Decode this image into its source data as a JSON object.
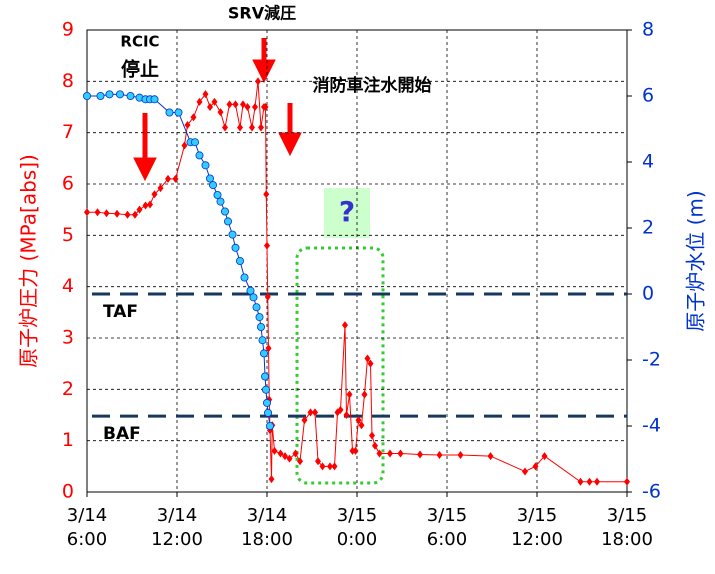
{
  "chart_data": {
    "type": "line",
    "y_label": "原子炉圧力 (MPa[abs])",
    "y2_label": "原子炉水位 (m)",
    "xlim": [
      6,
      42
    ],
    "xticks": [
      {
        "value": 6,
        "label": "3/14 6:00"
      },
      {
        "value": 12,
        "label": "3/14 12:00"
      },
      {
        "value": 18,
        "label": "3/14 18:00"
      },
      {
        "value": 24,
        "label": "3/15 0:00"
      },
      {
        "value": 30,
        "label": "3/15 6:00"
      },
      {
        "value": 36,
        "label": "3/15 12:00"
      },
      {
        "value": 42,
        "label": "3/15 18:00"
      }
    ],
    "ylim": [
      0,
      9
    ],
    "yticks": [
      0,
      1,
      2,
      3,
      4,
      5,
      6,
      7,
      8,
      9
    ],
    "y2lim": [
      -6,
      8
    ],
    "y2ticks": [
      -6,
      -4,
      -2,
      0,
      2,
      4,
      6,
      8
    ],
    "grid": true,
    "series": [
      {
        "color": "#ff0000",
        "marker": "diamond",
        "axis": "y",
        "x": [
          6.0,
          6.7,
          7.3,
          8.0,
          8.7,
          9.2,
          9.5,
          9.9,
          10.2,
          10.5,
          10.9,
          11.4,
          11.9,
          12.5,
          12.7,
          13.1,
          13.5,
          13.9,
          14.2,
          14.5,
          14.9,
          15.2,
          15.5,
          15.9,
          16.2,
          16.4,
          16.7,
          17.0,
          17.2,
          17.4,
          17.6,
          17.8,
          17.9,
          17.95,
          18.0,
          18.05,
          18.1,
          18.15,
          18.2,
          18.3,
          18.35,
          18.5,
          18.9,
          19.2,
          19.5,
          19.9,
          20.2,
          20.5,
          20.9,
          21.2,
          21.4,
          21.7,
          22.2,
          22.5,
          22.7,
          22.9,
          23.2,
          23.3,
          23.5,
          23.7,
          23.9,
          24.1,
          24.3,
          24.5,
          24.7,
          24.9,
          25.0,
          25.2,
          25.5,
          26.2,
          26.9,
          28.2,
          29.5,
          30.9,
          32.9,
          35.2,
          35.9,
          36.5,
          38.9,
          39.5,
          40.0,
          42.0
        ],
        "values": [
          5.45,
          5.45,
          5.43,
          5.42,
          5.4,
          5.4,
          5.5,
          5.58,
          5.6,
          5.8,
          5.92,
          6.1,
          6.1,
          6.75,
          7.15,
          7.3,
          7.6,
          7.75,
          7.5,
          7.6,
          7.4,
          7.1,
          7.55,
          7.55,
          7.1,
          7.55,
          7.5,
          7.1,
          7.5,
          8.0,
          7.1,
          7.5,
          7.5,
          5.8,
          4.8,
          3.8,
          2.8,
          1.8,
          1.2,
          0.25,
          1.3,
          0.8,
          0.75,
          0.7,
          0.65,
          0.75,
          0.6,
          1.4,
          1.55,
          1.55,
          0.6,
          0.5,
          0.5,
          0.5,
          1.55,
          1.6,
          3.25,
          1.5,
          1.9,
          0.8,
          0.8,
          1.4,
          1.3,
          1.9,
          2.6,
          2.5,
          1.1,
          0.9,
          0.75,
          0.75,
          0.75,
          0.73,
          0.72,
          0.72,
          0.7,
          0.4,
          0.5,
          0.7,
          0.2,
          0.2,
          0.2,
          0.2
        ]
      },
      {
        "color": "#0033cc",
        "marker": "circle",
        "marker_color": "#33ccff",
        "axis": "y2",
        "x": [
          6.0,
          6.9,
          7.5,
          8.2,
          8.9,
          9.5,
          9.9,
          10.2,
          10.5,
          11.5,
          12.1,
          12.9,
          13.2,
          13.5,
          13.9,
          14.2,
          14.4,
          14.7,
          14.9,
          15.2,
          15.4,
          15.7,
          15.9,
          16.2,
          16.5,
          16.9,
          17.1,
          17.3,
          17.5,
          17.6,
          17.7,
          17.8,
          17.87,
          17.93,
          18.0,
          18.07,
          18.2
        ],
        "values": [
          6.0,
          6.0,
          6.05,
          6.05,
          6.0,
          5.95,
          5.9,
          5.9,
          5.9,
          5.5,
          5.5,
          4.6,
          4.6,
          4.2,
          3.9,
          3.5,
          3.3,
          3.0,
          2.8,
          2.5,
          2.2,
          1.8,
          1.4,
          1.0,
          0.5,
          0.1,
          -0.1,
          -0.4,
          -0.7,
          -1.0,
          -1.4,
          -1.8,
          -2.5,
          -2.9,
          -3.3,
          -3.6,
          -4.0
        ]
      }
    ],
    "reference_lines": [
      {
        "label": "TAF",
        "value": 0,
        "axis": "y2",
        "color": "#17375e"
      },
      {
        "label": "BAF",
        "value": -3.7,
        "axis": "y2",
        "color": "#17375e"
      }
    ],
    "annotations": [
      "RCIC",
      "停止",
      "SRV減圧",
      "消防車注水開始",
      "?"
    ]
  }
}
